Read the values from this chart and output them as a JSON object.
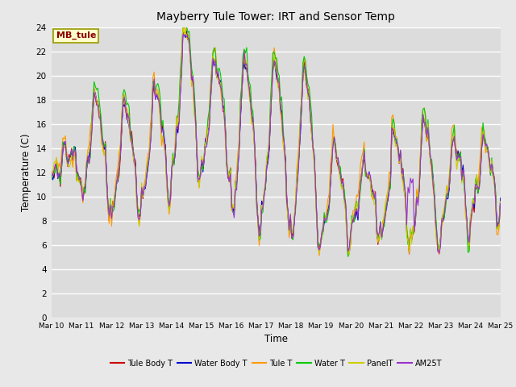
{
  "title": "Mayberry Tule Tower: IRT and Sensor Temp",
  "xlabel": "Time",
  "ylabel": "Temperature (C)",
  "ylim": [
    0,
    24
  ],
  "annotation": "MB_tule",
  "legend_labels": [
    "Tule Body T",
    "Water Body T",
    "Tule T",
    "Water T",
    "PanelT",
    "AM25T"
  ],
  "line_colors": [
    "#cc0000",
    "#0000cc",
    "#ff9900",
    "#00cc00",
    "#cccc00",
    "#9933cc"
  ],
  "xtick_labels": [
    "Mar 10",
    "Mar 11",
    "Mar 12",
    "Mar 13",
    "Mar 14",
    "Mar 15",
    "Mar 16",
    "Mar 17",
    "Mar 18",
    "Mar 19",
    "Mar 20",
    "Mar 21",
    "Mar 22",
    "Mar 23",
    "Mar 24",
    "Mar 25"
  ],
  "background_color": "#e8e8e8",
  "plot_bg_color": "#dcdcdc",
  "n_points": 360,
  "days": 15
}
